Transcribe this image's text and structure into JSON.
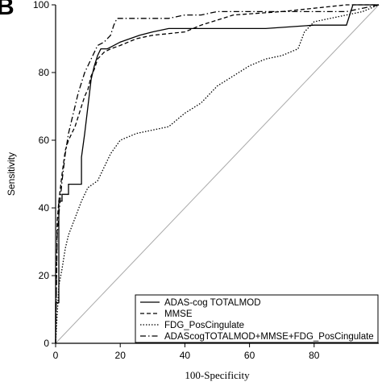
{
  "panel_label": "B",
  "chart_data": {
    "type": "line",
    "title": "",
    "xlabel": "100-Specificity",
    "ylabel": "Sensitivity",
    "xlim": [
      0,
      100
    ],
    "ylim": [
      0,
      100
    ],
    "xticks": [
      0,
      20,
      40,
      60,
      80
    ],
    "xtick_labels": [
      "0",
      "20",
      "40",
      "60",
      "80"
    ],
    "yticks": [
      0,
      20,
      40,
      60,
      80,
      100
    ],
    "ytick_labels": [
      "0",
      "20",
      "40",
      "60",
      "80",
      "100"
    ],
    "grid": false,
    "legend_position": "bottom-right",
    "reference_line": {
      "x": [
        0,
        100
      ],
      "y": [
        0,
        100
      ],
      "color": "#aaaaaa"
    },
    "series": [
      {
        "name": "ADAS-cog TOTALMOD",
        "style": "solid",
        "color": "#000000",
        "x": [
          0,
          0,
          1,
          1,
          2,
          2,
          4,
          4,
          8,
          8,
          9,
          10,
          11,
          12,
          13,
          14,
          16,
          18,
          20,
          23,
          26,
          30,
          35,
          55,
          60,
          62,
          65,
          80,
          90,
          92,
          100
        ],
        "y": [
          0,
          12,
          12,
          42,
          42,
          44,
          44,
          47,
          47,
          55,
          62,
          70,
          78,
          82,
          85,
          87,
          87,
          88,
          89,
          90,
          91,
          92,
          93,
          93,
          93,
          93,
          93,
          94,
          94,
          100,
          100
        ]
      },
      {
        "name": "MMSE",
        "style": "dashed",
        "color": "#000000",
        "x": [
          0,
          0.5,
          1,
          2,
          3,
          4,
          5,
          6,
          7,
          8,
          9,
          10,
          11,
          12,
          13,
          15,
          17,
          20,
          25,
          30,
          40,
          45,
          55,
          70,
          90,
          100
        ],
        "y": [
          0,
          36,
          42,
          50,
          57,
          60,
          62,
          64,
          67,
          70,
          73,
          75,
          79,
          81,
          84,
          86,
          87,
          88,
          90,
          91,
          92,
          94,
          97,
          98,
          100,
          100
        ]
      },
      {
        "name": "FDG_PosCingulate",
        "style": "dotted",
        "color": "#000000",
        "x": [
          0,
          1,
          2,
          3,
          4,
          6,
          8,
          10,
          13,
          15,
          17,
          20,
          25,
          30,
          35,
          40,
          45,
          50,
          55,
          60,
          65,
          70,
          75,
          77,
          80,
          85,
          90,
          95,
          100
        ],
        "y": [
          0,
          17,
          22,
          28,
          32,
          37,
          42,
          46,
          48,
          52,
          56,
          60,
          62,
          63,
          64,
          68,
          71,
          76,
          79,
          82,
          84,
          85,
          87,
          92,
          95,
          96,
          97,
          98,
          100
        ]
      },
      {
        "name": "ADAScogTOTALMOD+MMSE+FDG_PosCingulate",
        "style": "dashdot",
        "color": "#000000",
        "x": [
          0,
          0.5,
          1,
          2,
          3,
          4,
          5,
          6,
          7,
          8,
          9,
          10,
          12,
          13,
          15,
          17,
          18,
          19,
          20,
          25,
          30,
          35,
          40,
          45,
          50,
          55,
          60,
          70,
          80,
          90,
          95,
          100
        ],
        "y": [
          0,
          32,
          38,
          48,
          56,
          62,
          66,
          70,
          74,
          77,
          80,
          82,
          86,
          88,
          89,
          91,
          94,
          96,
          96,
          96,
          96,
          96,
          97,
          97,
          98,
          98,
          98,
          98,
          98,
          98,
          99,
          100
        ]
      }
    ]
  }
}
